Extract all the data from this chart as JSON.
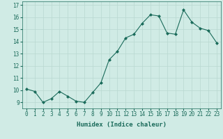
{
  "x": [
    0,
    1,
    2,
    3,
    4,
    5,
    6,
    7,
    8,
    9,
    10,
    11,
    12,
    13,
    14,
    15,
    16,
    17,
    18,
    19,
    20,
    21,
    22,
    23
  ],
  "y": [
    10.1,
    9.9,
    9.0,
    9.3,
    9.9,
    9.5,
    9.1,
    9.0,
    9.8,
    10.6,
    12.5,
    13.2,
    14.3,
    14.6,
    15.5,
    16.2,
    16.1,
    14.7,
    14.6,
    16.6,
    15.6,
    15.1,
    14.9,
    13.9
  ],
  "line_color": "#1a6b5a",
  "marker": "D",
  "marker_size": 2,
  "bg_color": "#d0ebe5",
  "grid_color": "#b8d8d0",
  "xlabel": "Humidex (Indice chaleur)",
  "ylim": [
    8.5,
    17.3
  ],
  "xlim": [
    -0.5,
    23.5
  ],
  "yticks": [
    9,
    10,
    11,
    12,
    13,
    14,
    15,
    16,
    17
  ],
  "xticks": [
    0,
    1,
    2,
    3,
    4,
    5,
    6,
    7,
    8,
    9,
    10,
    11,
    12,
    13,
    14,
    15,
    16,
    17,
    18,
    19,
    20,
    21,
    22,
    23
  ],
  "tick_color": "#1a6b5a",
  "font_size": 5.5,
  "xlabel_size": 6.5
}
